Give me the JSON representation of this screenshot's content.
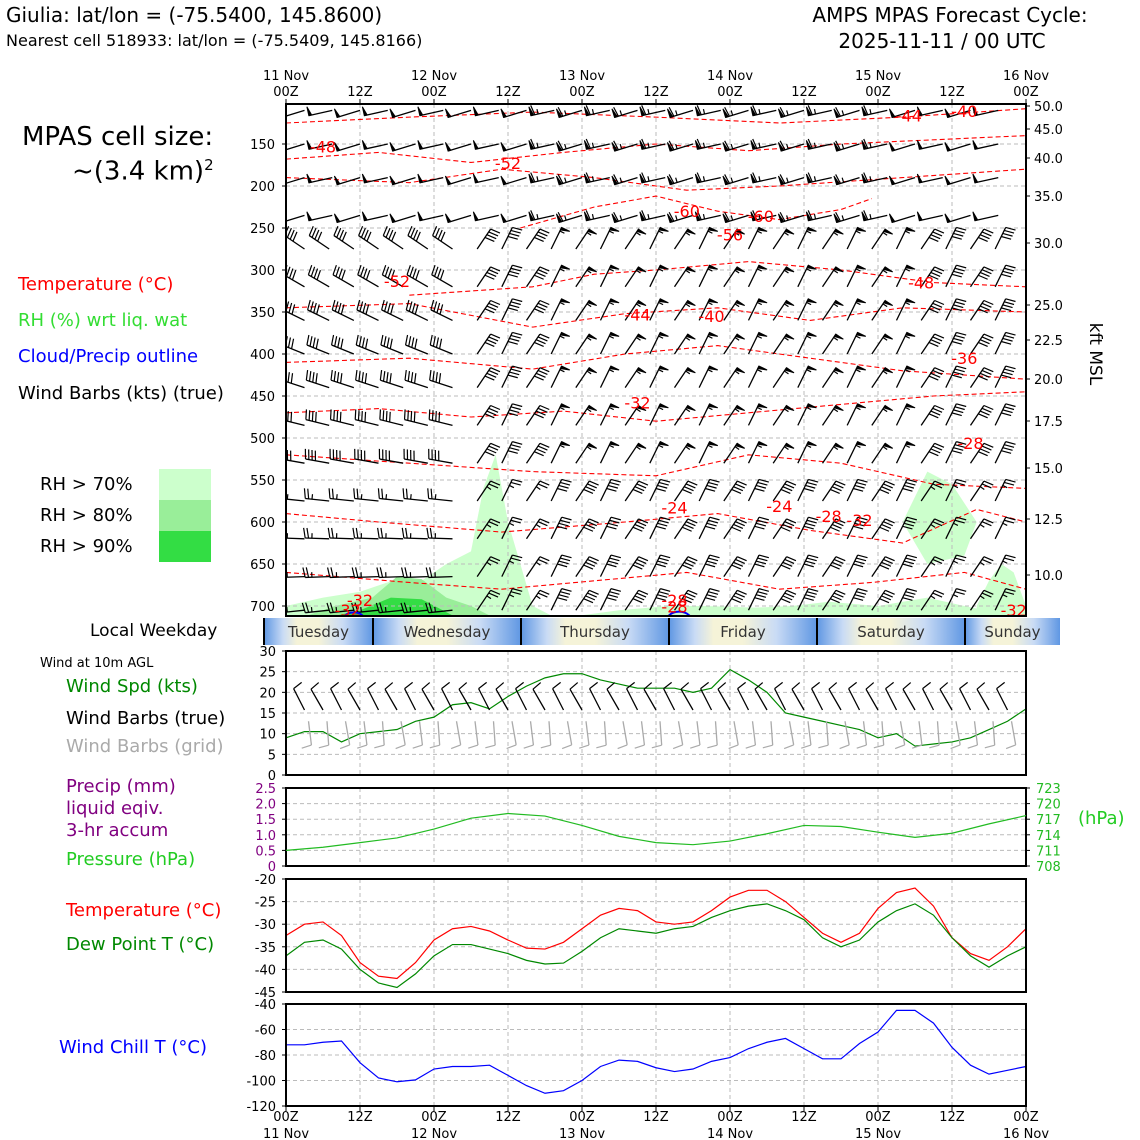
{
  "header": {
    "station": "Giulia: lat/lon = (-75.5400, 145.8600)",
    "nearest_cell": "Nearest cell 518933: lat/lon = (-75.5409, 145.8166)",
    "forecast_cycle_line1": "AMPS MPAS Forecast Cycle:",
    "forecast_cycle_line2": "2025-11-11 / 00 UTC"
  },
  "cell_size": {
    "line1": "MPAS cell size:",
    "line2": "~(3.4 km)",
    "sup": "2"
  },
  "profile_legend": {
    "temperature": "Temperature (°C)",
    "rh": "RH (%) wrt liq. wat",
    "cloud": "Cloud/Precip outline",
    "wind": "Wind Barbs (kts) (true)",
    "rh70": "RH > 70%",
    "rh80": "RH > 80%",
    "rh90": "RH > 90%"
  },
  "colors": {
    "temperature": "#ff0000",
    "rh_text": "#33dd33",
    "cloud": "#0000ff",
    "rh70": "#ccffcc",
    "rh80": "#99ee99",
    "rh90": "#33dd44",
    "wind_speed": "#008800",
    "dewpoint": "#008800",
    "pressure": "#22bb22",
    "precip": "#800080",
    "wind_chill": "#0000ff",
    "grid_barb": "#aaaaaa"
  },
  "time_axis": {
    "top_labels": [
      {
        "date": "11 Nov",
        "hour": "00Z"
      },
      {
        "date": "",
        "hour": "12Z"
      },
      {
        "date": "12 Nov",
        "hour": "00Z"
      },
      {
        "date": "",
        "hour": "12Z"
      },
      {
        "date": "13 Nov",
        "hour": "00Z"
      },
      {
        "date": "",
        "hour": "12Z"
      },
      {
        "date": "14 Nov",
        "hour": "00Z"
      },
      {
        "date": "",
        "hour": "12Z"
      },
      {
        "date": "15 Nov",
        "hour": "00Z"
      },
      {
        "date": "",
        "hour": "12Z"
      },
      {
        "date": "16 Nov",
        "hour": "00Z"
      }
    ]
  },
  "weekday_bar": {
    "label": "Local Weekday",
    "days": [
      "Tuesday",
      "Wednesday",
      "Thursday",
      "Friday",
      "Saturday",
      "Sunday"
    ]
  },
  "profile_axes": {
    "pressure_ticks": [
      "150",
      "200",
      "250",
      "300",
      "350",
      "400",
      "450",
      "500",
      "550",
      "600",
      "650",
      "700"
    ],
    "kft_ticks": [
      "50.0",
      "45.0",
      "40.0",
      "35.0",
      "30.0",
      "25.0",
      "22.5",
      "20.0",
      "17.5",
      "15.0",
      "12.5",
      "10.0"
    ],
    "kft_label": "kft MSL"
  },
  "temp_contour_labels": [
    "-40",
    "-44",
    "-48",
    "-52",
    "-60",
    "-60",
    "-56",
    "-52",
    "-48",
    "-44",
    "-40",
    "-36",
    "-32",
    "-28",
    "-24",
    "-24",
    "-28",
    "-32",
    "-32",
    "-32",
    "-28",
    "-28",
    "-32"
  ],
  "wind_panel": {
    "title": "Wind at 10m AGL",
    "label_speed": "Wind Spd (kts)",
    "label_true": "Wind Barbs (true)",
    "label_grid": "Wind Barbs (grid)",
    "y_ticks": [
      "0",
      "5",
      "10",
      "15",
      "20",
      "25",
      "30"
    ]
  },
  "precip_panel": {
    "label_precip1": "Precip (mm)",
    "label_precip2": "liquid eqiv.",
    "label_precip3": "3-hr accum",
    "label_pressure": "Pressure (hPa)",
    "hpa_unit": "(hPa)",
    "precip_ticks": [
      "0",
      "0.5",
      "1.0",
      "1.5",
      "2.0",
      "2.5"
    ],
    "pressure_ticks": [
      "708",
      "711",
      "714",
      "717",
      "720",
      "723"
    ]
  },
  "temp_panel": {
    "label_temp": "Temperature (°C)",
    "label_dew": "Dew Point T (°C)",
    "y_ticks": [
      "-45",
      "-40",
      "-35",
      "-30",
      "-25",
      "-20"
    ]
  },
  "chill_panel": {
    "label": "Wind Chill T (°C)",
    "y_ticks": [
      "-120",
      "-100",
      "-80",
      "-60",
      "-40"
    ]
  },
  "chart_data": [
    {
      "type": "line",
      "title": "Wind at 10m AGL",
      "ylabel": "Wind Spd (kts)",
      "ylim": [
        0,
        30
      ],
      "x": [
        0,
        3,
        6,
        9,
        12,
        15,
        18,
        21,
        24,
        27,
        30,
        33,
        36,
        39,
        42,
        45,
        48,
        51,
        54,
        57,
        60,
        63,
        66,
        69,
        72,
        75,
        78,
        81,
        84,
        87,
        90,
        93,
        96,
        99,
        102,
        105,
        108,
        111,
        114,
        117,
        120
      ],
      "series": [
        {
          "name": "Wind Spd (kts)",
          "values": [
            9,
            10.5,
            10.5,
            8,
            10,
            10.5,
            11,
            13,
            14,
            17,
            17.5,
            16,
            19,
            21.5,
            23.5,
            24.5,
            24.5,
            23,
            22,
            21,
            21,
            21,
            20,
            21,
            25.5,
            23,
            20,
            15,
            14,
            13,
            12,
            11,
            9,
            10,
            7,
            7.5,
            8,
            9,
            11,
            13,
            16
          ]
        }
      ]
    },
    {
      "type": "line",
      "title": "Pressure (hPa)",
      "ylabel": "Pressure (hPa)",
      "ylim": [
        708,
        723
      ],
      "x": [
        0,
        6,
        12,
        18,
        24,
        30,
        36,
        42,
        48,
        54,
        60,
        66,
        72,
        78,
        84,
        90,
        96,
        102,
        108,
        114,
        120
      ],
      "series": [
        {
          "name": "Pressure (hPa)",
          "values": [
            711,
            711.6,
            712.5,
            713.4,
            715.1,
            717.2,
            718.1,
            717.6,
            715.8,
            713.7,
            712.5,
            712.1,
            712.8,
            714.2,
            715.8,
            715.6,
            714.5,
            713.5,
            714.3,
            716.1,
            717.7
          ]
        }
      ]
    },
    {
      "type": "line",
      "title": "Temperature / Dew Point",
      "ylabel": "°C",
      "ylim": [
        -45,
        -20
      ],
      "x": [
        0,
        3,
        6,
        9,
        12,
        15,
        18,
        21,
        24,
        27,
        30,
        33,
        36,
        39,
        42,
        45,
        48,
        51,
        54,
        57,
        60,
        63,
        66,
        69,
        72,
        75,
        78,
        81,
        84,
        87,
        90,
        93,
        96,
        99,
        102,
        105,
        108,
        111,
        114,
        117,
        120
      ],
      "series": [
        {
          "name": "Temperature (°C)",
          "values": [
            -32.5,
            -30,
            -29.5,
            -32.5,
            -38.5,
            -41.5,
            -42,
            -38.5,
            -33.5,
            -31,
            -30.5,
            -31.5,
            -33.5,
            -35.3,
            -35.5,
            -34,
            -31,
            -28,
            -26.5,
            -27,
            -29.5,
            -30,
            -29.5,
            -27,
            -24,
            -22.5,
            -22.5,
            -25,
            -28.5,
            -32,
            -34,
            -32,
            -26.5,
            -23,
            -22,
            -26,
            -33,
            -36.5,
            -38,
            -35,
            -31
          ]
        },
        {
          "name": "Dew Point T (°C)",
          "values": [
            -37,
            -34,
            -33.5,
            -35.5,
            -40,
            -43,
            -44,
            -41,
            -37,
            -34.5,
            -34.5,
            -35.5,
            -36.5,
            -38,
            -38.8,
            -38.6,
            -36,
            -33,
            -31,
            -31.5,
            -32,
            -31,
            -30.5,
            -28.5,
            -27,
            -26,
            -25.5,
            -27,
            -29,
            -33,
            -35,
            -33.5,
            -29.5,
            -27,
            -25.5,
            -28,
            -33,
            -37,
            -39.5,
            -37,
            -35
          ]
        }
      ]
    },
    {
      "type": "line",
      "title": "Wind Chill T",
      "ylabel": "Wind Chill T (°C)",
      "ylim": [
        -120,
        -40
      ],
      "x": [
        0,
        3,
        6,
        9,
        12,
        15,
        18,
        21,
        24,
        27,
        30,
        33,
        36,
        39,
        42,
        45,
        48,
        51,
        54,
        57,
        60,
        63,
        66,
        69,
        72,
        75,
        78,
        81,
        84,
        87,
        90,
        93,
        96,
        99,
        102,
        105,
        108,
        111,
        114,
        117,
        120
      ],
      "series": [
        {
          "name": "Wind Chill T (°C)",
          "values": [
            -72,
            -72,
            -70,
            -69,
            -86,
            -98,
            -101,
            -99.5,
            -91,
            -89,
            -89,
            -88,
            -96,
            -104,
            -110,
            -108,
            -100,
            -89,
            -84,
            -85,
            -90,
            -93,
            -91,
            -85,
            -82,
            -75,
            -70,
            -67,
            -75,
            -83,
            -83,
            -71,
            -62,
            -45,
            -45,
            -55,
            -74,
            -88,
            -95,
            -92,
            -89
          ]
        }
      ]
    }
  ]
}
